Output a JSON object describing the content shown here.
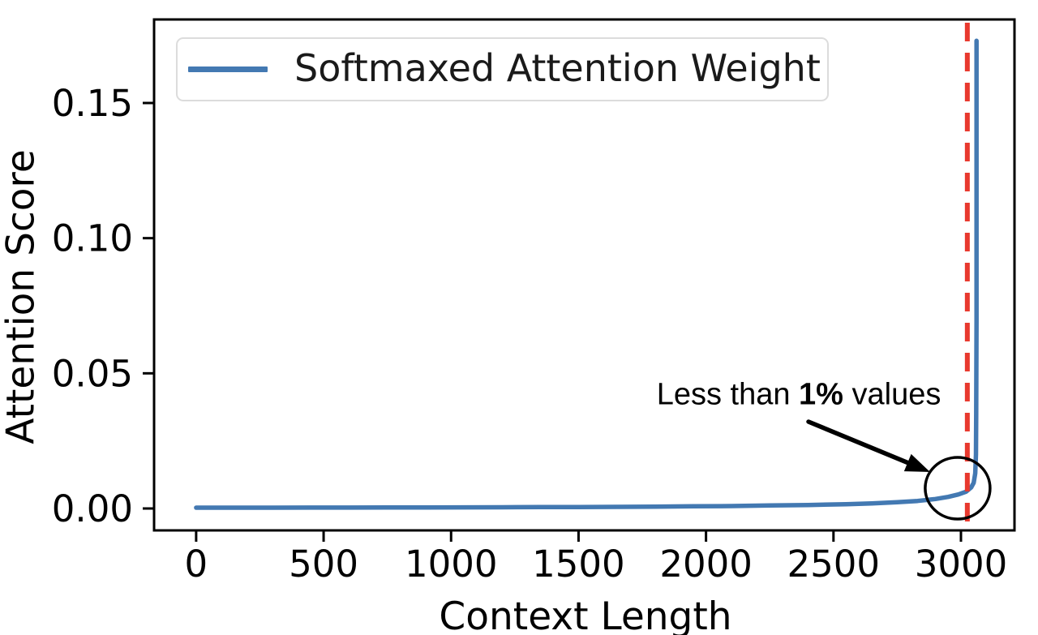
{
  "figure": {
    "background": "#ffffff",
    "axis_color": "#000000"
  },
  "chart_data": {
    "type": "line",
    "title": "",
    "xlabel": "Context Length",
    "ylabel": "Attention Score",
    "xlim": [
      -165,
      3210
    ],
    "ylim": [
      -0.0081,
      0.1809
    ],
    "grid": false,
    "xticks": {
      "values": [
        0,
        500,
        1000,
        1500,
        2000,
        2500,
        3000
      ],
      "labels": [
        "0",
        "500",
        "1000",
        "1500",
        "2000",
        "2500",
        "3000"
      ]
    },
    "yticks": {
      "values": [
        0.0,
        0.05,
        0.1,
        0.15
      ],
      "labels": [
        "0.00",
        "0.05",
        "0.10",
        "0.15"
      ]
    },
    "legend": {
      "position": "upper left",
      "label": "Softmaxed Attention Weight"
    },
    "series": [
      {
        "name": "Softmaxed Attention Weight",
        "color": "#4379b2",
        "line_width": 5.5,
        "points": [
          [
            0,
            0.0003
          ],
          [
            150,
            0.0003
          ],
          [
            300,
            0.0003
          ],
          [
            450,
            0.00032
          ],
          [
            600,
            0.00034
          ],
          [
            750,
            0.00036
          ],
          [
            900,
            0.0004
          ],
          [
            1050,
            0.00042
          ],
          [
            1200,
            0.00046
          ],
          [
            1350,
            0.0005
          ],
          [
            1500,
            0.00055
          ],
          [
            1650,
            0.0006
          ],
          [
            1800,
            0.0007
          ],
          [
            1950,
            0.0008
          ],
          [
            2100,
            0.0009
          ],
          [
            2250,
            0.0011
          ],
          [
            2400,
            0.0013
          ],
          [
            2550,
            0.0016
          ],
          [
            2650,
            0.0019
          ],
          [
            2750,
            0.0023
          ],
          [
            2830,
            0.0028
          ],
          [
            2900,
            0.0035
          ],
          [
            2950,
            0.0043
          ],
          [
            2990,
            0.0052
          ],
          [
            3020,
            0.0062
          ],
          [
            3040,
            0.0078
          ],
          [
            3050,
            0.0095
          ],
          [
            3056,
            0.013
          ],
          [
            3059,
            0.02
          ],
          [
            3060,
            0.035
          ],
          [
            3061,
            0.07
          ],
          [
            3061,
            0.11
          ],
          [
            3061,
            0.173
          ]
        ],
        "peak": {
          "x": 3061,
          "y": 0.173
        }
      }
    ],
    "vline": {
      "x": 3025,
      "color": "#e8392e",
      "style": "dashed",
      "width": 6,
      "dash": "23 14"
    },
    "annotation": {
      "text": "Less than 1% values",
      "text_parts": {
        "pre": "Less than ",
        "bold": "1%",
        "post": " values"
      },
      "text_center": [
        2364,
        0.042
      ],
      "arrow_from": [
        2402,
        0.0321
      ],
      "arrow_to": [
        2879,
        0.0135
      ],
      "circle_center": [
        2987,
        0.0075
      ],
      "circle_radius_px": [
        40,
        38
      ],
      "color": "#000000"
    }
  }
}
